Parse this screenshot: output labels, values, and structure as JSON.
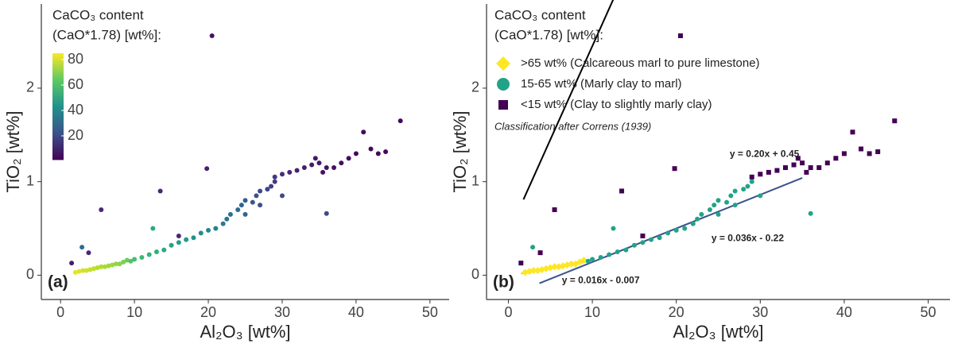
{
  "chart_data": [
    {
      "type": "scatter",
      "panel_label": "(a)",
      "xlabel": "Al₂O₃ [wt%]",
      "ylabel": "TiO₂ [wt%]",
      "xlim": [
        -2.6,
        52.6
      ],
      "ylim": [
        -0.26,
        2.9
      ],
      "xticks": [
        0,
        10,
        20,
        30,
        40,
        50
      ],
      "yticks": [
        0,
        1,
        2
      ],
      "colorbar": {
        "title": [
          "CaCO₃ content",
          "(CaO*1.78) [wt%]:"
        ],
        "lim": [
          1,
          85
        ],
        "ticks": [
          20,
          40,
          60,
          80
        ],
        "colormap": "viridis"
      },
      "x": [
        2,
        2.5,
        3,
        3.5,
        4,
        4.5,
        5,
        5.5,
        6,
        6.5,
        7,
        7.5,
        8,
        8.5,
        9,
        9.5,
        10,
        11,
        12,
        12.5,
        13,
        14,
        15,
        16,
        17,
        18,
        19,
        20,
        21,
        22,
        22.5,
        23,
        24,
        24.5,
        25,
        25,
        26,
        26.5,
        27,
        27,
        28,
        28.5,
        29,
        30,
        36,
        2.9,
        29,
        30,
        31,
        32,
        33,
        34,
        35,
        34.5,
        35.5,
        36,
        37,
        38,
        39,
        40,
        41,
        42,
        43,
        44,
        46,
        20.5,
        19.8,
        13.5,
        5.5,
        16,
        3.8,
        1.5
      ],
      "y": [
        0.03,
        0.04,
        0.05,
        0.05,
        0.06,
        0.07,
        0.08,
        0.09,
        0.09,
        0.1,
        0.11,
        0.12,
        0.12,
        0.14,
        0.16,
        0.15,
        0.17,
        0.19,
        0.22,
        0.5,
        0.25,
        0.27,
        0.32,
        0.35,
        0.38,
        0.4,
        0.45,
        0.48,
        0.5,
        0.55,
        0.6,
        0.65,
        0.7,
        0.75,
        0.8,
        0.65,
        0.78,
        0.85,
        0.9,
        0.75,
        0.92,
        0.95,
        1.0,
        0.85,
        0.66,
        0.3,
        1.05,
        1.08,
        1.1,
        1.12,
        1.15,
        1.18,
        1.2,
        1.25,
        1.1,
        1.15,
        1.15,
        1.2,
        1.25,
        1.3,
        1.53,
        1.35,
        1.3,
        1.32,
        1.65,
        2.56,
        1.14,
        0.9,
        0.7,
        0.42,
        0.24,
        0.13
      ],
      "c": [
        82,
        81,
        80,
        79,
        78,
        77,
        76,
        75,
        74,
        73,
        72,
        71,
        70,
        68,
        66,
        62,
        60,
        58,
        56,
        52,
        54,
        52,
        50,
        48,
        46,
        44,
        42,
        40,
        38,
        36,
        34,
        32,
        30,
        28,
        26,
        28,
        24,
        22,
        20,
        22,
        18,
        17,
        16,
        20,
        20,
        30,
        14,
        12,
        10,
        9,
        8,
        7,
        6,
        6,
        5,
        5,
        5,
        4,
        4,
        3,
        3,
        3,
        3,
        3,
        3,
        5,
        8,
        10,
        10,
        10,
        10,
        8
      ]
    },
    {
      "type": "scatter",
      "panel_label": "(b)",
      "xlabel": "Al₂O₃ [wt%]",
      "ylabel": "TiO₂ [wt%]",
      "xlim": [
        -2.6,
        52.6
      ],
      "ylim": [
        -0.26,
        2.9
      ],
      "xticks": [
        0,
        10,
        20,
        30,
        40,
        50
      ],
      "yticks": [
        0,
        1,
        2
      ],
      "legend_title": [
        "CaCO₃ content",
        "(CaO*1.78) [wt%]:"
      ],
      "annotation": "Classification after Correns (1939)",
      "series": [
        {
          "name": ">65 wt% (Calcareous marl to pure limestone)",
          "color": "#fde725",
          "marker": "diamond",
          "x": [
            2,
            2.5,
            3,
            3.5,
            4,
            4.5,
            5,
            5.5,
            6,
            6.5,
            7,
            7.5,
            8,
            8.5,
            9
          ],
          "y": [
            0.03,
            0.04,
            0.05,
            0.05,
            0.06,
            0.07,
            0.08,
            0.09,
            0.09,
            0.1,
            0.11,
            0.12,
            0.12,
            0.14,
            0.16
          ]
        },
        {
          "name": "15-65 wt% (Marly clay to marl)",
          "color": "#22a387",
          "marker": "circle",
          "x": [
            9.5,
            10,
            11,
            12,
            12.5,
            13,
            14,
            15,
            16,
            17,
            18,
            19,
            20,
            21,
            22,
            22.5,
            23,
            24,
            24.5,
            25,
            25,
            26,
            26.5,
            27,
            27,
            28,
            28.5,
            29,
            30,
            36,
            2.9
          ],
          "y": [
            0.15,
            0.17,
            0.19,
            0.22,
            0.5,
            0.25,
            0.27,
            0.32,
            0.35,
            0.38,
            0.4,
            0.45,
            0.48,
            0.5,
            0.55,
            0.6,
            0.65,
            0.7,
            0.75,
            0.8,
            0.65,
            0.78,
            0.85,
            0.9,
            0.75,
            0.92,
            0.95,
            1.0,
            0.85,
            0.66,
            0.3
          ]
        },
        {
          "name": "<15 wt% (Clay to slightly marly clay)",
          "color": "#440154",
          "marker": "square",
          "x": [
            29,
            30,
            31,
            32,
            33,
            34,
            35,
            34.5,
            35.5,
            36,
            37,
            38,
            39,
            40,
            41,
            42,
            43,
            44,
            46,
            20.5,
            19.8,
            13.5,
            5.5,
            16,
            3.8,
            1.5
          ],
          "y": [
            1.05,
            1.08,
            1.1,
            1.12,
            1.15,
            1.18,
            1.2,
            1.25,
            1.1,
            1.15,
            1.15,
            1.2,
            1.25,
            1.3,
            1.53,
            1.35,
            1.3,
            1.32,
            1.65,
            2.56,
            1.14,
            0.9,
            0.7,
            0.42,
            0.24,
            0.13
          ]
        }
      ],
      "fits": [
        {
          "label": "y = 0.20x + 0.45",
          "slope": 0.2,
          "intercept": 0.45,
          "x_range": [
            1.8,
            46.3
          ],
          "color": "#000000",
          "label_color": "#440154"
        },
        {
          "label": "y = 0.036x - 0.22",
          "slope": 0.036,
          "intercept": -0.22,
          "x_range": [
            3.7,
            35
          ],
          "color": "#3b528b",
          "label_color": "#22a387"
        },
        {
          "label": "y = 0.016x - 0.007",
          "slope": 0.016,
          "intercept": -0.007,
          "x_range": [
            1.5,
            9.2
          ],
          "color": "#c2df23",
          "label_color": "#7ad151"
        }
      ]
    }
  ]
}
